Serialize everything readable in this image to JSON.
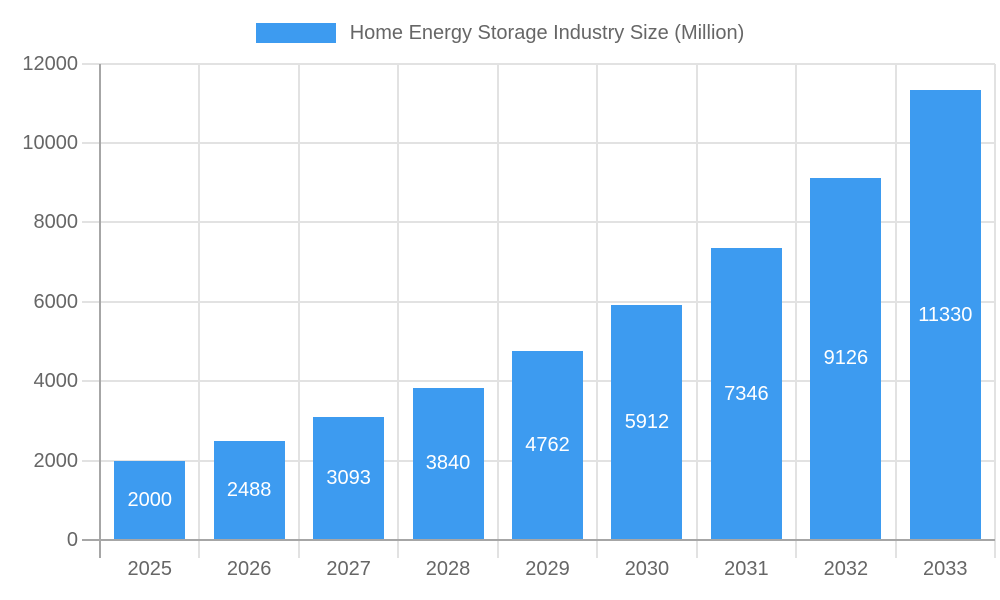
{
  "legend": {
    "label": "Home Energy Storage Industry Size (Million)",
    "swatch_color": "#3d9bf0"
  },
  "chart_data": {
    "type": "bar",
    "title": "Home Energy Storage Industry Size (Million)",
    "series_name": "Home Energy Storage Industry Size (Million)",
    "categories": [
      "2025",
      "2026",
      "2027",
      "2028",
      "2029",
      "2030",
      "2031",
      "2032",
      "2033"
    ],
    "values": [
      2000,
      2488,
      3093,
      3840,
      4762,
      5912,
      7346,
      9126,
      11330
    ],
    "xlabel": "",
    "ylabel": "",
    "ylim": [
      0,
      12000
    ],
    "y_ticks": [
      0,
      2000,
      4000,
      6000,
      8000,
      10000,
      12000
    ],
    "grid": true,
    "legend_position": "top",
    "data_labels_position": "center-inside",
    "colors": {
      "bar": "#3d9bf0",
      "bar_label_text": "#ffffff",
      "axis_line": "#a6a6a6",
      "gridline": "#e2e2e2",
      "tick_text": "#666666",
      "legend_text": "#666666",
      "background": "#ffffff"
    }
  }
}
